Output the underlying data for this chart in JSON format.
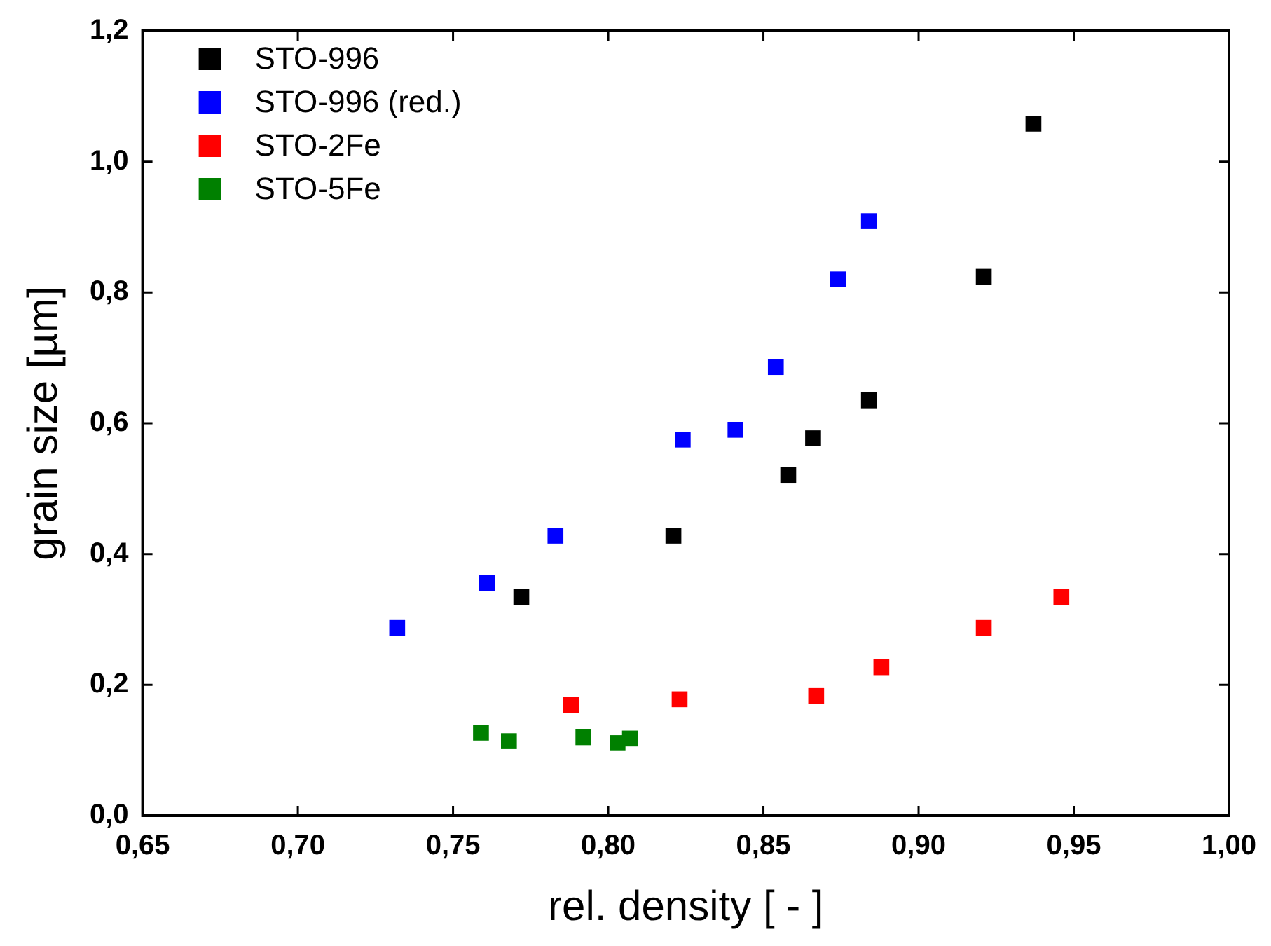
{
  "chart_data": {
    "type": "scatter",
    "xlabel": "rel. density [ - ]",
    "ylabel": "grain size [µm]",
    "xlim": [
      0.65,
      1.0
    ],
    "ylim": [
      0,
      1.2
    ],
    "xticks": [
      {
        "value": 0.65,
        "label": "0,65"
      },
      {
        "value": 0.7,
        "label": "0,70"
      },
      {
        "value": 0.75,
        "label": "0,75"
      },
      {
        "value": 0.8,
        "label": "0,80"
      },
      {
        "value": 0.85,
        "label": "0,85"
      },
      {
        "value": 0.9,
        "label": "0,90"
      },
      {
        "value": 0.95,
        "label": "0,95"
      },
      {
        "value": 1.0,
        "label": "1,00"
      }
    ],
    "yticks": [
      {
        "value": 0,
        "label": "0,0"
      },
      {
        "value": 0.2,
        "label": "0,2"
      },
      {
        "value": 0.4,
        "label": "0,4"
      },
      {
        "value": 0.6,
        "label": "0,6"
      },
      {
        "value": 0.8,
        "label": "0,8"
      },
      {
        "value": 1.0,
        "label": "1,0"
      },
      {
        "value": 1.2,
        "label": "1,2"
      }
    ],
    "grid": false,
    "legend": "top left",
    "marker": "square",
    "series": [
      {
        "name": "STO-996",
        "color": "#000000",
        "x": [
          0.772,
          0.821,
          0.858,
          0.866,
          0.884,
          0.921,
          0.937
        ],
        "values": [
          0.334,
          0.428,
          0.521,
          0.577,
          0.635,
          0.824,
          1.058
        ]
      },
      {
        "name": "STO-996 (red.)",
        "color": "#0000ff",
        "x": [
          0.732,
          0.761,
          0.783,
          0.824,
          0.841,
          0.854,
          0.874,
          0.884
        ],
        "values": [
          0.287,
          0.356,
          0.428,
          0.575,
          0.59,
          0.686,
          0.82,
          0.909
        ]
      },
      {
        "name": "STO-2Fe",
        "color": "#ff0000",
        "x": [
          0.788,
          0.823,
          0.867,
          0.888,
          0.921,
          0.946
        ],
        "values": [
          0.169,
          0.178,
          0.183,
          0.227,
          0.287,
          0.334
        ]
      },
      {
        "name": "STO-5Fe",
        "color": "#008000",
        "x": [
          0.759,
          0.768,
          0.792,
          0.803,
          0.807
        ],
        "values": [
          0.127,
          0.114,
          0.12,
          0.111,
          0.118
        ]
      }
    ]
  }
}
